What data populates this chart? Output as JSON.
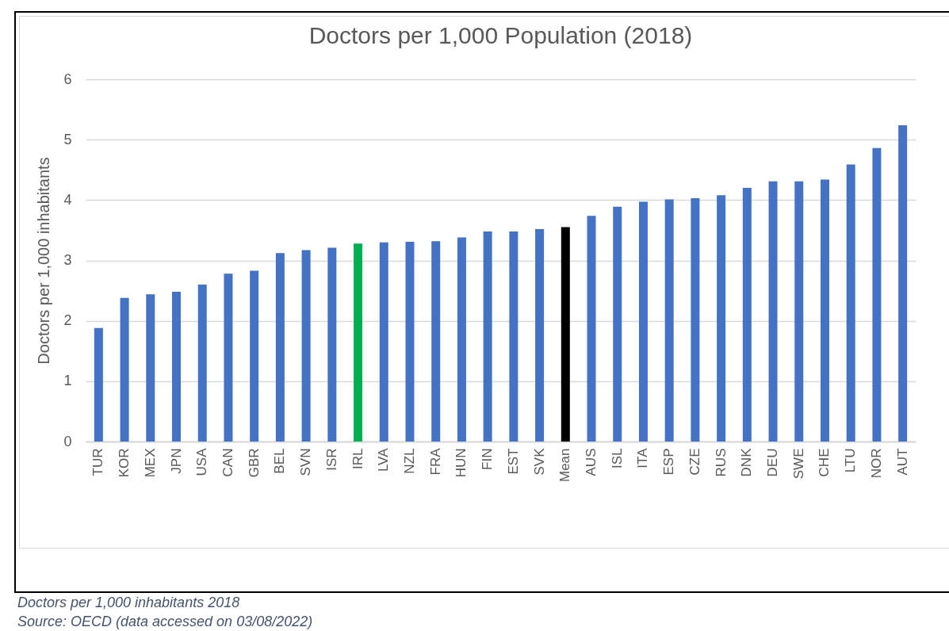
{
  "chart_data": {
    "type": "bar",
    "title": "Doctors per 1,000 Population (2018)",
    "ylabel": "Doctors per 1,000 inhabitants",
    "categories": [
      "TUR",
      "KOR",
      "MEX",
      "JPN",
      "USA",
      "CAN",
      "GBR",
      "BEL",
      "SVN",
      "ISR",
      "IRL",
      "LVA",
      "NZL",
      "FRA",
      "HUN",
      "FIN",
      "EST",
      "SVK",
      "Mean",
      "AUS",
      "ISL",
      "ITA",
      "ESP",
      "CZE",
      "RUS",
      "DNK",
      "DEU",
      "SWE",
      "CHE",
      "LTU",
      "NOR",
      "AUT"
    ],
    "values": [
      1.88,
      2.38,
      2.44,
      2.48,
      2.6,
      2.78,
      2.83,
      3.12,
      3.17,
      3.21,
      3.28,
      3.3,
      3.31,
      3.32,
      3.38,
      3.48,
      3.48,
      3.52,
      3.55,
      3.74,
      3.89,
      3.97,
      4.01,
      4.03,
      4.08,
      4.2,
      4.31,
      4.31,
      4.34,
      4.59,
      4.86,
      5.24
    ],
    "colors": [
      "#4472c4",
      "#4472c4",
      "#4472c4",
      "#4472c4",
      "#4472c4",
      "#4472c4",
      "#4472c4",
      "#4472c4",
      "#4472c4",
      "#4472c4",
      "#00b050",
      "#4472c4",
      "#4472c4",
      "#4472c4",
      "#4472c4",
      "#4472c4",
      "#4472c4",
      "#4472c4",
      "#000000",
      "#4472c4",
      "#4472c4",
      "#4472c4",
      "#4472c4",
      "#4472c4",
      "#4472c4",
      "#4472c4",
      "#4472c4",
      "#4472c4",
      "#4472c4",
      "#4472c4",
      "#4472c4",
      "#4472c4"
    ],
    "ylim": [
      0,
      6
    ],
    "yticks": [
      0,
      1,
      2,
      3,
      4,
      5,
      6
    ],
    "grid": "y",
    "annotations": [
      "Doctors per 1,000 inhabitants 2018",
      "Source: OECD (data accessed on 03/08/2022)"
    ]
  }
}
